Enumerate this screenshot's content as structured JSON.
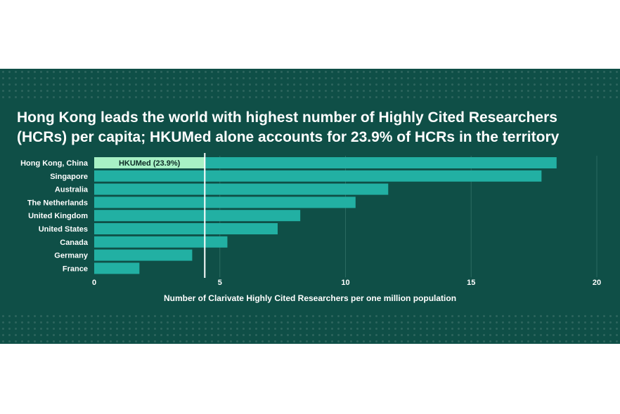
{
  "title": "Hong Kong leads the world with highest number of Highly Cited Researchers (HCRs) per capita; HKUMed alone accounts for 23.9% of HCRs in the territory",
  "colors": {
    "background": "#0f4f47",
    "bar": "#22b0a3",
    "highlight": "#a7f1c5",
    "grid": "#2a6a60",
    "marker": "#ffffff"
  },
  "chart_data": {
    "type": "bar",
    "orientation": "horizontal",
    "categories": [
      "Hong Kong, China",
      "Singapore",
      "Australia",
      "The Netherlands",
      "United Kingdom",
      "United States",
      "Canada",
      "Germany",
      "France"
    ],
    "values": [
      18.4,
      17.8,
      11.7,
      10.4,
      8.2,
      7.3,
      5.3,
      3.9,
      1.8
    ],
    "xlabel": "Number of Clarivate Highly Cited Researchers per one million population",
    "xlim": [
      0,
      20
    ],
    "xticks": [
      "0",
      "5",
      "10",
      "15",
      "20"
    ],
    "grid": true,
    "annotation": {
      "label": "HKUMed (23.9%)",
      "category": "Hong Kong, China",
      "value": 4.4
    }
  }
}
